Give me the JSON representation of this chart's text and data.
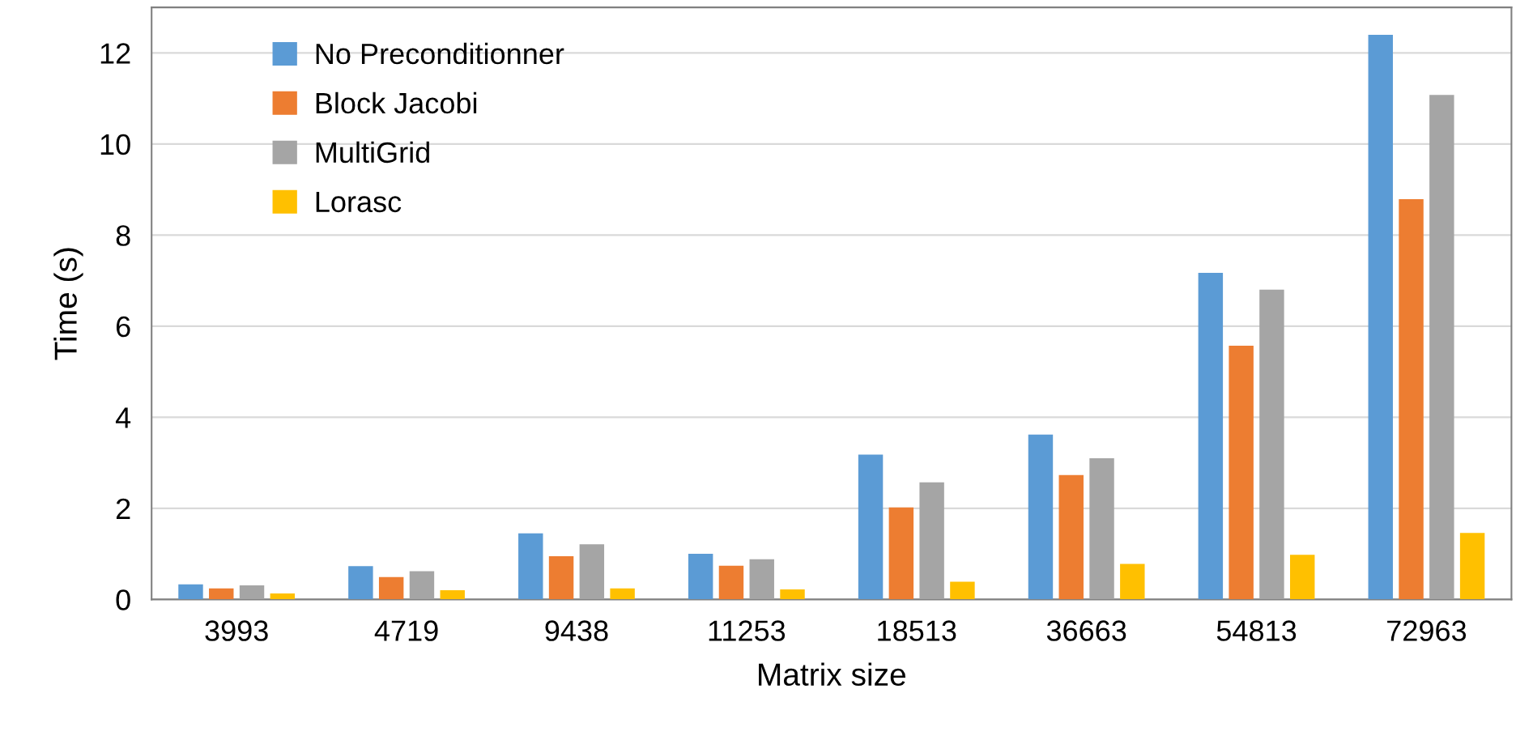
{
  "chart_data": {
    "type": "bar",
    "xlabel": "Matrix size",
    "ylabel": "Time (s)",
    "categories": [
      "3993",
      "4719",
      "9438",
      "11253",
      "18513",
      "36663",
      "54813",
      "72963"
    ],
    "series": [
      {
        "name": "No Preconditionner",
        "color": "#5b9bd5",
        "values": [
          0.33,
          0.73,
          1.45,
          1.0,
          3.18,
          3.62,
          7.17,
          12.4
        ]
      },
      {
        "name": "Block Jacobi",
        "color": "#ed7d31",
        "values": [
          0.24,
          0.49,
          0.95,
          0.74,
          2.02,
          2.73,
          5.57,
          8.79
        ]
      },
      {
        "name": "MultiGrid",
        "color": "#a5a5a5",
        "values": [
          0.31,
          0.62,
          1.21,
          0.88,
          2.57,
          3.1,
          6.8,
          11.08
        ]
      },
      {
        "name": "Lorasc",
        "color": "#ffc000",
        "values": [
          0.13,
          0.2,
          0.24,
          0.22,
          0.39,
          0.78,
          0.98,
          1.46
        ]
      }
    ],
    "ylim": [
      0,
      13
    ],
    "yticks": [
      0,
      2,
      4,
      6,
      8,
      10,
      12
    ],
    "grid": "y",
    "legend": "top left"
  }
}
